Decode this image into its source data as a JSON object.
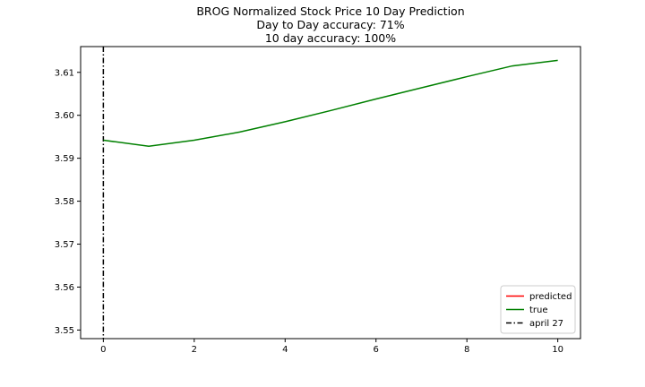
{
  "chart_data": {
    "type": "line",
    "title_lines": [
      "BROG Normalized Stock Price 10 Day Prediction",
      "Day to Day accuracy: 71%",
      "10 day accuracy: 100%"
    ],
    "xlabel": "",
    "ylabel": "",
    "xlim": [
      -0.5,
      10.5
    ],
    "ylim": [
      3.548,
      3.616
    ],
    "x_ticks": [
      0,
      2,
      4,
      6,
      8,
      10
    ],
    "x_tick_labels": [
      "0",
      "2",
      "4",
      "6",
      "8",
      "10"
    ],
    "y_ticks": [
      3.55,
      3.56,
      3.57,
      3.58,
      3.59,
      3.6,
      3.61
    ],
    "y_tick_labels": [
      "3.55",
      "3.56",
      "3.57",
      "3.58",
      "3.59",
      "3.60",
      "3.61"
    ],
    "grid": false,
    "legend_position": "bottom-right",
    "series": [
      {
        "name": "predicted",
        "color": "#ff0000",
        "style": "solid",
        "x": [],
        "values": []
      },
      {
        "name": "true",
        "color": "#008000",
        "style": "solid",
        "x": [
          0,
          1,
          2,
          3,
          4,
          5,
          6,
          7,
          8,
          9,
          10
        ],
        "values": [
          3.5942,
          3.5928,
          3.5942,
          3.5961,
          3.5985,
          3.6011,
          3.6038,
          3.6064,
          3.609,
          3.6115,
          3.6128
        ]
      }
    ],
    "vlines": [
      {
        "name": "april 27",
        "x": 0,
        "color": "#000000",
        "style": "dashdot"
      }
    ]
  }
}
